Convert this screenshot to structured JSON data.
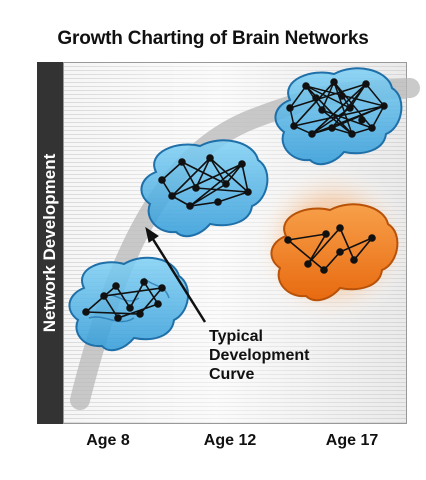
{
  "title": "Growth Charting of Brain Networks",
  "y_axis_label": "Network Development",
  "x_axis": {
    "labels": [
      "Age 8",
      "Age 12",
      "Age 17"
    ]
  },
  "annotation": {
    "lines": [
      "Typical",
      "Development",
      "Curve"
    ]
  },
  "colors": {
    "typical_brain_fill": "#4fb3e8",
    "typical_brain_stroke": "#1f6fa8",
    "atypical_brain_fill": "#f07f1c",
    "atypical_glow": "#f5a060",
    "curve": "#b8b8b8",
    "label_bar": "#333333"
  },
  "icons": [
    "brain-icon",
    "network-graph",
    "arrow"
  ]
}
